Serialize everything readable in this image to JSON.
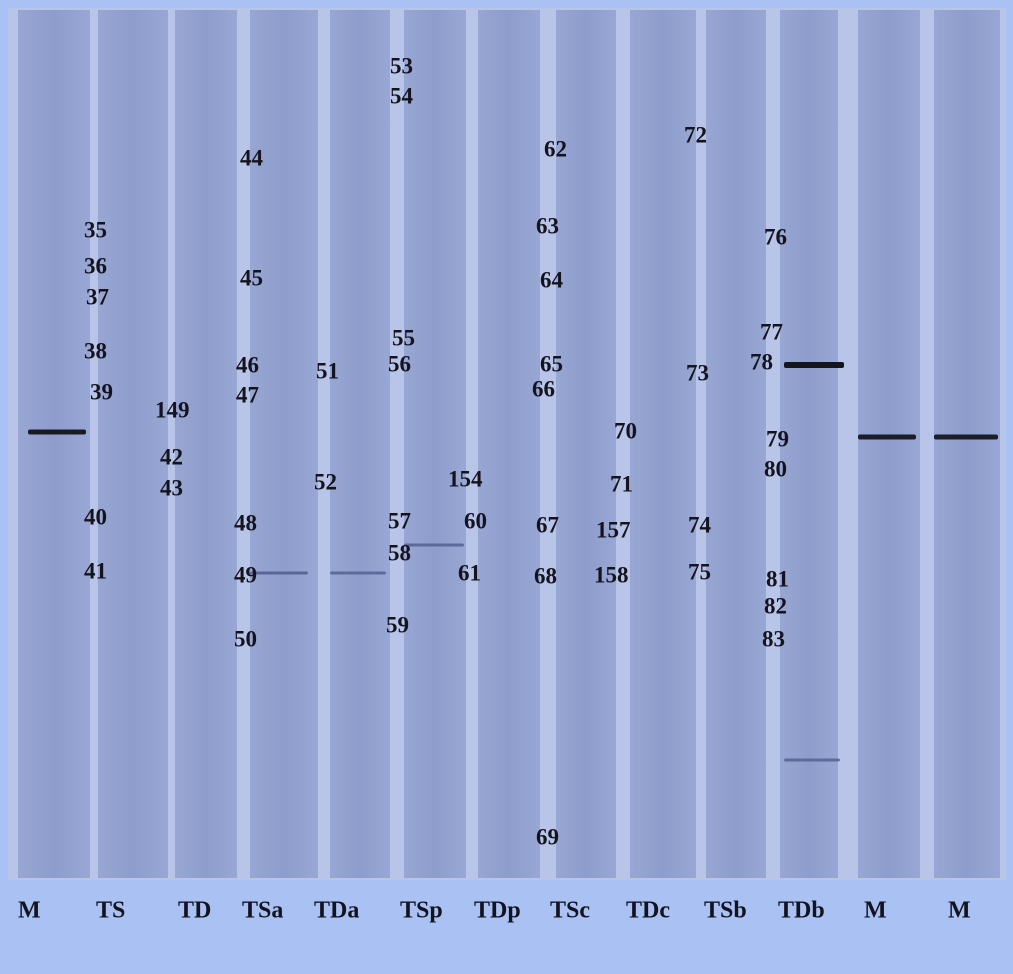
{
  "lanes": [
    "M",
    "TS",
    "TD",
    "TSa",
    "TDa",
    "TSp",
    "TDp",
    "TSc",
    "TDc",
    "TSb",
    "TDb",
    "M",
    "M"
  ],
  "bands": [
    "35",
    "36",
    "37",
    "38",
    "39",
    "40",
    "41",
    "149",
    "42",
    "43",
    "44",
    "45",
    "46",
    "47",
    "48",
    "49",
    "50",
    "51",
    "52",
    "53",
    "54",
    "55",
    "56",
    "57",
    "58",
    "59",
    "154",
    "60",
    "61",
    "62",
    "63",
    "64",
    "65",
    "66",
    "67",
    "68",
    "69",
    "70",
    "71",
    "157",
    "158",
    "72",
    "73",
    "74",
    "75",
    "76",
    "77",
    "78",
    "79",
    "80",
    "81",
    "82",
    "83"
  ]
}
